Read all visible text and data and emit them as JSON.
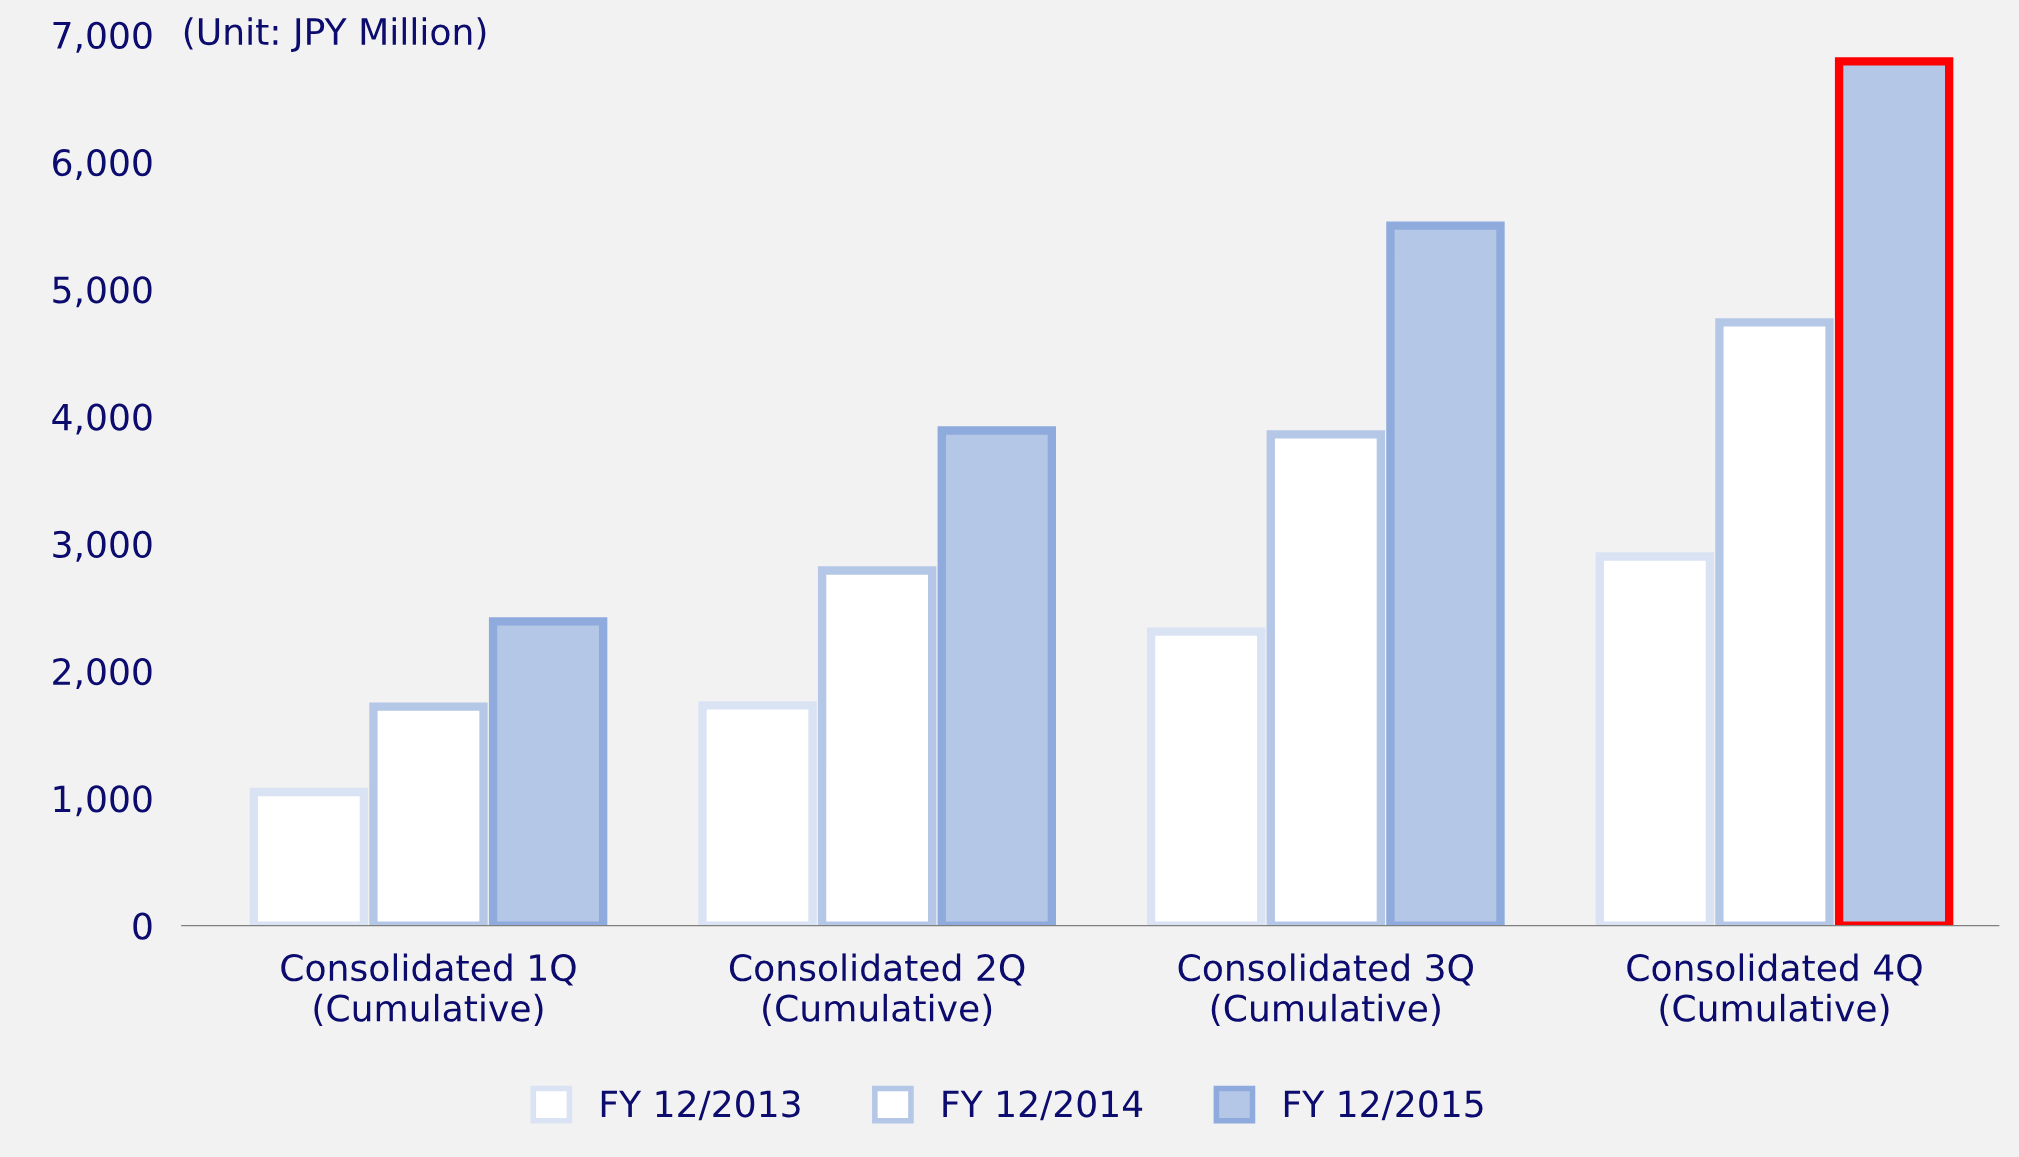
{
  "chart_data": {
    "type": "bar",
    "categories": [
      "Consolidated 1Q\n(Cumulative)",
      "Consolidated 2Q\n(Cumulative)",
      "Consolidated 3Q\n(Cumulative)",
      "Consolidated 4Q\n(Cumulative)"
    ],
    "series": [
      {
        "name": "FY 12/2013",
        "color": "#ffffff",
        "colors": [
          "#dae3f3",
          "#dae3f3",
          "#dae3f3",
          "#dae3f3"
        ],
        "values": [
          1050,
          1730,
          2310,
          2900
        ]
      },
      {
        "name": "FY 12/2014",
        "color": "#ffffff",
        "colors": [
          "#b4c7e7",
          "#b4c7e7",
          "#b4c7e7",
          "#b4c7e7"
        ],
        "values": [
          1720,
          2790,
          3860,
          4740
        ]
      },
      {
        "name": "FY 12/2015",
        "color": "#b4c7e7",
        "colors": [
          "#8faadc",
          "#8faadc",
          "#8faadc",
          "#ff0000"
        ],
        "values": [
          2390,
          3890,
          5500,
          6790
        ]
      }
    ],
    "annotations": [
      "(Unit: JPY Million)"
    ],
    "ylim": [
      0,
      7000
    ],
    "yticks": [
      {
        "value": 0,
        "label": "0"
      },
      {
        "value": 1000,
        "label": "1,000"
      },
      {
        "value": 2000,
        "label": "2,000"
      },
      {
        "value": 3000,
        "label": "3,000"
      },
      {
        "value": 4000,
        "label": "4,000"
      },
      {
        "value": 5000,
        "label": "5,000"
      },
      {
        "value": 6000,
        "label": "6,000"
      },
      {
        "value": 7000,
        "label": "7,000"
      }
    ],
    "grid": false,
    "legend": "bottom"
  }
}
